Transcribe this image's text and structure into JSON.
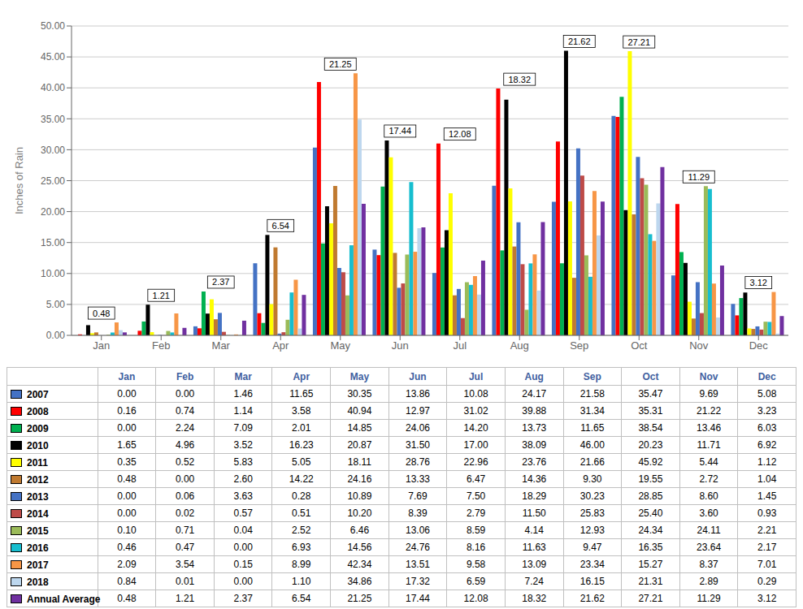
{
  "chart_data": {
    "type": "bar",
    "ylabel": "Inches of Rain",
    "categories": [
      "Jan",
      "Feb",
      "Mar",
      "Apr",
      "May",
      "Jun",
      "Jul",
      "Aug",
      "Sep",
      "Oct",
      "Nov",
      "Dec"
    ],
    "series": [
      {
        "name": "2007",
        "color": "#4472C4",
        "values": [
          0.0,
          0.0,
          1.46,
          11.65,
          30.35,
          13.86,
          10.08,
          24.17,
          21.58,
          35.47,
          9.69,
          5.08
        ],
        "value_labels": [
          "0.00",
          "0.00",
          "1.46",
          "11.65",
          "30.35",
          "13.86",
          "10.08",
          "24.17",
          "21.58",
          "35.47",
          "9.69",
          "5.08"
        ]
      },
      {
        "name": "2008",
        "color": "#FF0000",
        "values": [
          0.16,
          0.74,
          1.14,
          3.58,
          40.94,
          12.97,
          31.02,
          39.88,
          31.34,
          35.31,
          21.22,
          3.23
        ],
        "value_labels": [
          "0.16",
          "0.74",
          "1.14",
          "3.58",
          "40.94",
          "12.97",
          "31.02",
          "39.88",
          "31.34",
          "35.31",
          "21.22",
          "3.23"
        ]
      },
      {
        "name": "2009",
        "color": "#00B050",
        "values": [
          0.0,
          2.24,
          7.09,
          2.01,
          14.85,
          24.06,
          14.2,
          13.73,
          11.65,
          38.54,
          13.46,
          6.03
        ],
        "value_labels": [
          "0.00",
          "2.24",
          "7.09",
          "2.01",
          "14.85",
          "24.06",
          "14.20",
          "13.73",
          "11.65",
          "38.54",
          "13.46",
          "6.03"
        ]
      },
      {
        "name": "2010",
        "color": "#000000",
        "values": [
          1.65,
          4.96,
          3.52,
          16.23,
          20.87,
          31.5,
          17.0,
          38.09,
          46.0,
          20.23,
          11.71,
          6.92
        ],
        "value_labels": [
          "1.65",
          "4.96",
          "3.52",
          "16.23",
          "20.87",
          "31.50",
          "17.00",
          "38.09",
          "46.00",
          "20.23",
          "11.71",
          "6.92"
        ]
      },
      {
        "name": "2011",
        "color": "#FFFF00",
        "values": [
          0.35,
          0.52,
          5.83,
          5.05,
          18.11,
          28.76,
          22.96,
          23.76,
          21.66,
          45.92,
          5.44,
          1.12
        ],
        "value_labels": [
          "0.35",
          "0.52",
          "5.83",
          "5.05",
          "18.11",
          "28.76",
          "22.96",
          "23.76",
          "21.66",
          "45.92",
          "5.44",
          "1.12"
        ]
      },
      {
        "name": "2012",
        "color": "#C07A30",
        "values": [
          0.48,
          0.0,
          2.6,
          14.22,
          24.16,
          13.33,
          6.47,
          14.36,
          9.3,
          19.55,
          2.72,
          1.04
        ],
        "value_labels": [
          "0.48",
          "0.00",
          "2.60",
          "14.22",
          "24.16",
          "13.33",
          "6.47",
          "14.36",
          "9.30",
          "19.55",
          "2.72",
          "1.04"
        ]
      },
      {
        "name": "2013",
        "color": "#4472C4",
        "values": [
          0.0,
          0.06,
          3.63,
          0.28,
          10.89,
          7.69,
          7.5,
          18.29,
          30.23,
          28.85,
          8.6,
          1.45
        ],
        "value_labels": [
          "0.00",
          "0.06",
          "3.63",
          "0.28",
          "10.89",
          "7.69",
          "7.50",
          "18.29",
          "30.23",
          "28.85",
          "8.60",
          "1.45"
        ]
      },
      {
        "name": "2014",
        "color": "#BE4B48",
        "values": [
          0.0,
          0.02,
          0.57,
          0.51,
          10.2,
          8.39,
          2.79,
          11.5,
          25.83,
          25.4,
          3.6,
          0.93
        ],
        "value_labels": [
          "0.00",
          "0.02",
          "0.57",
          "0.51",
          "10.20",
          "8.39",
          "2.79",
          "11.50",
          "25.83",
          "25.40",
          "3.60",
          "0.93"
        ]
      },
      {
        "name": "2015",
        "color": "#9BBB59",
        "values": [
          0.1,
          0.71,
          0.04,
          2.52,
          6.46,
          13.06,
          8.59,
          4.14,
          12.93,
          24.34,
          24.11,
          2.21
        ],
        "value_labels": [
          "0.10",
          "0.71",
          "0.04",
          "2.52",
          "6.46",
          "13.06",
          "8.59",
          "4.14",
          "12.93",
          "24.34",
          "24.11",
          "2.21"
        ]
      },
      {
        "name": "2016",
        "color": "#17BECF",
        "values": [
          0.46,
          0.47,
          0.0,
          6.93,
          14.56,
          24.76,
          8.16,
          11.63,
          9.47,
          16.35,
          23.64,
          2.17
        ],
        "value_labels": [
          "0.46",
          "0.47",
          "0.00",
          "6.93",
          "14.56",
          "24.76",
          "8.16",
          "11.63",
          "9.47",
          "16.35",
          "23.64",
          "2.17"
        ]
      },
      {
        "name": "2017",
        "color": "#F79646",
        "values": [
          2.09,
          3.54,
          0.15,
          8.99,
          42.34,
          13.51,
          9.58,
          13.09,
          23.34,
          15.27,
          8.37,
          7.01
        ],
        "value_labels": [
          "2.09",
          "3.54",
          "0.15",
          "8.99",
          "42.34",
          "13.51",
          "9.58",
          "13.09",
          "23.34",
          "15.27",
          "8.37",
          "7.01"
        ]
      },
      {
        "name": "2018",
        "color": "#BDD7EE",
        "values": [
          0.84,
          0.01,
          0.0,
          1.1,
          34.86,
          17.32,
          6.59,
          7.24,
          16.15,
          21.31,
          2.89,
          0.29
        ],
        "value_labels": [
          "0.84",
          "0.01",
          "0.00",
          "1.10",
          "34.86",
          "17.32",
          "6.59",
          "7.24",
          "16.15",
          "21.31",
          "2.89",
          "0.29"
        ]
      },
      {
        "name": "Annual Average",
        "color": "#7030A0",
        "values": [
          0.48,
          1.21,
          2.37,
          6.54,
          21.25,
          17.44,
          12.08,
          18.32,
          21.62,
          27.21,
          11.29,
          3.12
        ],
        "value_labels": [
          "0.48",
          "1.21",
          "2.37",
          "6.54",
          "21.25",
          "17.44",
          "12.08",
          "18.32",
          "21.62",
          "27.21",
          "11.29",
          "3.12"
        ]
      }
    ],
    "annotations": [
      {
        "category": "Jan",
        "text": "0.48"
      },
      {
        "category": "Feb",
        "text": "1.21"
      },
      {
        "category": "Mar",
        "text": "2.37"
      },
      {
        "category": "Apr",
        "text": "6.54"
      },
      {
        "category": "May",
        "text": "21.25"
      },
      {
        "category": "Jun",
        "text": "17.44"
      },
      {
        "category": "Jul",
        "text": "12.08"
      },
      {
        "category": "Aug",
        "text": "18.32"
      },
      {
        "category": "Sep",
        "text": "21.62"
      },
      {
        "category": "Oct",
        "text": "27.21"
      },
      {
        "category": "Nov",
        "text": "11.29"
      },
      {
        "category": "Dec",
        "text": "3.12"
      }
    ],
    "ylim": [
      0,
      50
    ],
    "yticks": [
      {
        "value": 0,
        "label": "0.00"
      },
      {
        "value": 5,
        "label": "5.00"
      },
      {
        "value": 10,
        "label": "10.00"
      },
      {
        "value": 15,
        "label": "15.00"
      },
      {
        "value": 20,
        "label": "20.00"
      },
      {
        "value": 25,
        "label": "25.00"
      },
      {
        "value": 30,
        "label": "30.00"
      },
      {
        "value": 35,
        "label": "35.00"
      },
      {
        "value": 40,
        "label": "40.00"
      },
      {
        "value": 45,
        "label": "45.00"
      },
      {
        "value": 50,
        "label": "50.00"
      }
    ],
    "grid": true
  }
}
